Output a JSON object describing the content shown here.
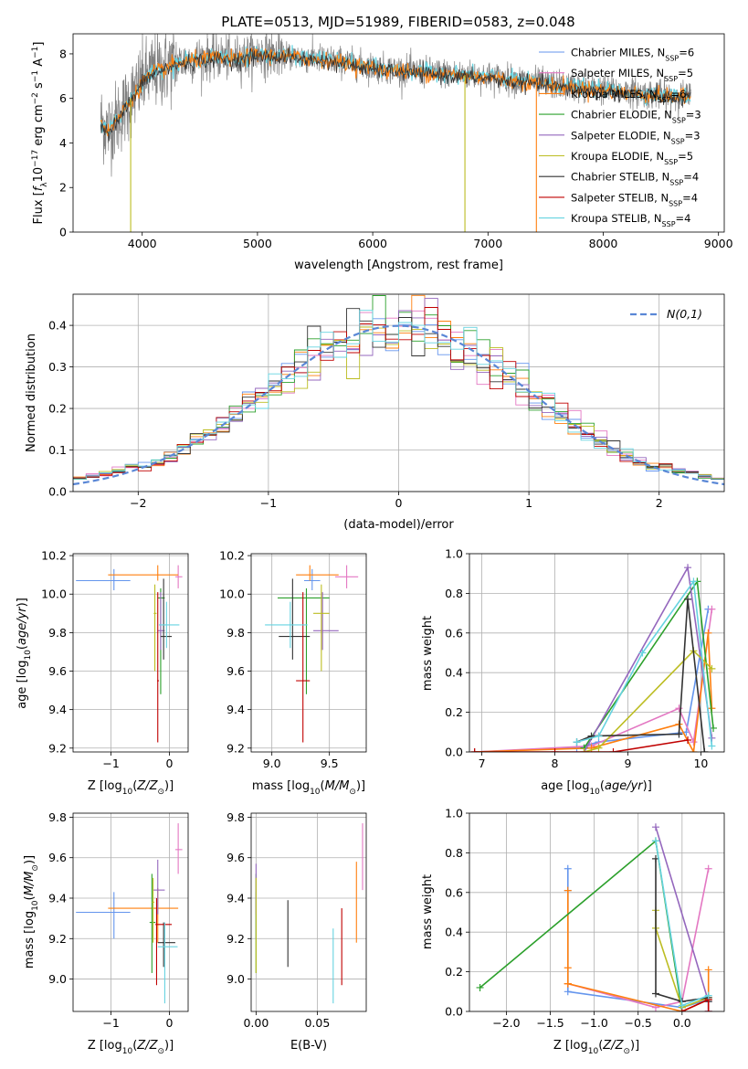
{
  "figure": {
    "title": "PLATE=0513, MJD=51989, FIBERID=0583, z=0.048"
  },
  "colors": {
    "Chabrier MILES": "#6495ed",
    "Salpeter MILES": "#e377c2",
    "Kroupa MILES": "#ff7f0e",
    "Chabrier ELODIE": "#2ca02c",
    "Salpeter ELODIE": "#9467bd",
    "Kroupa ELODIE": "#bcbd22",
    "Chabrier STELIB": "#333333",
    "Salpeter STELIB": "#c00000",
    "Kroupa STELIB": "#66d3e0",
    "data": "#808080",
    "gaussian": "#5a87d6"
  },
  "legend_spectrum": [
    {
      "name": "Chabrier MILES",
      "nssp": "6",
      "key": "Chabrier MILES"
    },
    {
      "name": "Salpeter MILES",
      "nssp": "5",
      "key": "Salpeter MILES"
    },
    {
      "name": "Kroupa MILES",
      "nssp": "6",
      "key": "Kroupa MILES"
    },
    {
      "name": "Chabrier ELODIE",
      "nssp": "3",
      "key": "Chabrier ELODIE"
    },
    {
      "name": "Salpeter ELODIE",
      "nssp": "3",
      "key": "Salpeter ELODIE"
    },
    {
      "name": "Kroupa ELODIE",
      "nssp": "5",
      "key": "Kroupa ELODIE"
    },
    {
      "name": "Chabrier STELIB",
      "nssp": "4",
      "key": "Chabrier STELIB"
    },
    {
      "name": "Salpeter STELIB",
      "nssp": "4",
      "key": "Salpeter STELIB"
    },
    {
      "name": "Kroupa STELIB",
      "nssp": "4",
      "key": "Kroupa STELIB"
    }
  ],
  "chart_data": [
    {
      "id": "spectrum",
      "type": "line",
      "xlabel": "wavelength [Angstrom, rest frame]",
      "ylabel": "Flux [f_λ 10^-17 erg cm^-2 s^-1 A^-1]",
      "xlim": [
        3400,
        9050
      ],
      "ylim": [
        0,
        8.9
      ],
      "xticks": [
        4000,
        5000,
        6000,
        7000,
        8000,
        9000
      ],
      "yticks": [
        0,
        2,
        4,
        6,
        8
      ],
      "continuum_x": [
        3640,
        3700,
        3800,
        3900,
        3950,
        4000,
        4100,
        4200,
        4300,
        4400,
        4500,
        4600,
        4700,
        4800,
        4900,
        5000,
        5200,
        5400,
        5600,
        5800,
        6000,
        6200,
        6400,
        6600,
        6800,
        7000,
        7200,
        7400,
        7600,
        7800,
        8000,
        8200,
        8400,
        8600,
        8760
      ],
      "continuum_y": [
        5.0,
        4.6,
        5.2,
        6.0,
        6.3,
        6.8,
        7.2,
        7.4,
        7.6,
        7.7,
        7.8,
        7.85,
        7.85,
        7.8,
        7.9,
        8.0,
        7.95,
        7.85,
        7.75,
        7.6,
        7.4,
        7.3,
        7.2,
        7.15,
        7.05,
        7.0,
        6.85,
        6.75,
        6.6,
        6.5,
        6.4,
        6.3,
        6.2,
        6.1,
        6.1
      ],
      "drops": [
        {
          "series": "Kroupa MILES",
          "x": 7420,
          "y": 0
        },
        {
          "series": "Kroupa ELODIE",
          "x": 3900,
          "y": 0
        },
        {
          "series": "Kroupa ELODIE",
          "x": 6800,
          "y": 0
        }
      ]
    },
    {
      "id": "residuals",
      "type": "histogram",
      "xlabel": "(data-model)/error",
      "ylabel": "Normed distribution",
      "xlim": [
        -2.5,
        2.5
      ],
      "ylim": [
        0,
        0.475
      ],
      "xticks": [
        -2,
        -1,
        0,
        1,
        2
      ],
      "yticks": [
        0,
        0.1,
        0.2,
        0.3,
        0.4
      ],
      "bin_width": 0.1,
      "legend": "N(0,1)",
      "grid": true
    },
    {
      "id": "age_vs_Z",
      "type": "errorbar",
      "xlabel": "Z [log10(Z/Z⊙)]",
      "ylabel": "age [log10(age/yr)]",
      "xlim": [
        -1.65,
        0.32
      ],
      "ylim": [
        9.18,
        10.21
      ],
      "xticks": [
        -1,
        0
      ],
      "yticks": [
        9.2,
        9.4,
        9.6,
        9.8,
        10.0,
        10.2
      ],
      "points": [
        {
          "series": "Chabrier MILES",
          "x": -0.95,
          "xerr": [
            0.65,
            0.28
          ],
          "y": 10.07,
          "yerr": [
            0.05,
            0.06
          ]
        },
        {
          "series": "Salpeter MILES",
          "x": 0.15,
          "xerr": [
            0.05,
            0.07
          ],
          "y": 10.09,
          "yerr": [
            0.06,
            0.06
          ]
        },
        {
          "series": "Kroupa MILES",
          "x": -0.2,
          "xerr": [
            0.85,
            0.35
          ],
          "y": 10.1,
          "yerr": [
            0.03,
            0.05
          ]
        },
        {
          "series": "Chabrier ELODIE",
          "x": -0.15,
          "xerr": [
            0.05,
            0.07
          ],
          "y": 9.98,
          "yerr": [
            0.5,
            0.05
          ]
        },
        {
          "series": "Salpeter ELODIE",
          "x": -0.15,
          "xerr": [
            0.05,
            0.07
          ],
          "y": 9.81,
          "yerr": [
            0.1,
            0.2
          ]
        },
        {
          "series": "Kroupa ELODIE",
          "x": -0.25,
          "xerr": [
            0.02,
            0.03
          ],
          "y": 9.9,
          "yerr": [
            0.3,
            0.15
          ]
        },
        {
          "series": "Chabrier STELIB",
          "x": -0.1,
          "xerr": [
            0.05,
            0.14
          ],
          "y": 9.78,
          "yerr": [
            0.12,
            0.3
          ]
        },
        {
          "series": "Salpeter STELIB",
          "x": -0.2,
          "xerr": [
            0.01,
            0.02
          ],
          "y": 9.55,
          "yerr": [
            0.32,
            0.46
          ]
        },
        {
          "series": "Kroupa STELIB",
          "x": -0.05,
          "xerr": [
            0.13,
            0.22
          ],
          "y": 9.84,
          "yerr": [
            0.12,
            0.12
          ]
        }
      ]
    },
    {
      "id": "age_vs_mass",
      "type": "errorbar",
      "xlabel": "mass [log10(M/M⊙)]",
      "ylabel": "",
      "xlim": [
        8.82,
        9.82
      ],
      "ylim": [
        9.18,
        10.21
      ],
      "xticks": [
        9.0,
        9.5
      ],
      "yticks": [
        9.2,
        9.4,
        9.6,
        9.8,
        10.0,
        10.2
      ],
      "points": [
        {
          "series": "Chabrier MILES",
          "x": 9.35,
          "xerr": [
            0.07,
            0.07
          ],
          "y": 10.07,
          "yerr": [
            0.05,
            0.06
          ]
        },
        {
          "series": "Salpeter MILES",
          "x": 9.65,
          "xerr": [
            0.1,
            0.1
          ],
          "y": 10.09,
          "yerr": [
            0.06,
            0.06
          ]
        },
        {
          "series": "Kroupa MILES",
          "x": 9.33,
          "xerr": [
            0.12,
            0.25
          ],
          "y": 10.1,
          "yerr": [
            0.03,
            0.05
          ]
        },
        {
          "series": "Chabrier ELODIE",
          "x": 9.3,
          "xerr": [
            0.25,
            0.2
          ],
          "y": 9.98,
          "yerr": [
            0.5,
            0.05
          ]
        },
        {
          "series": "Salpeter ELODIE",
          "x": 9.44,
          "xerr": [
            0.08,
            0.14
          ],
          "y": 9.81,
          "yerr": [
            0.1,
            0.2
          ]
        },
        {
          "series": "Kroupa ELODIE",
          "x": 9.43,
          "xerr": [
            0.07,
            0.07
          ],
          "y": 9.9,
          "yerr": [
            0.3,
            0.15
          ]
        },
        {
          "series": "Chabrier STELIB",
          "x": 9.18,
          "xerr": [
            0.12,
            0.15
          ],
          "y": 9.78,
          "yerr": [
            0.12,
            0.3
          ]
        },
        {
          "series": "Salpeter STELIB",
          "x": 9.27,
          "xerr": [
            0.06,
            0.06
          ],
          "y": 9.55,
          "yerr": [
            0.32,
            0.46
          ]
        },
        {
          "series": "Kroupa STELIB",
          "x": 9.16,
          "xerr": [
            0.22,
            0.15
          ],
          "y": 9.84,
          "yerr": [
            0.12,
            0.12
          ]
        }
      ]
    },
    {
      "id": "weight_vs_age",
      "type": "line",
      "xlabel": "age [log10(age/yr)]",
      "ylabel": "mass weight",
      "xlim": [
        6.83,
        10.32
      ],
      "ylim": [
        0,
        1.0
      ],
      "xticks": [
        7,
        8,
        9,
        10
      ],
      "yticks": [
        0.0,
        0.2,
        0.4,
        0.6,
        0.8,
        1.0
      ],
      "series": [
        {
          "name": "Chabrier MILES",
          "x": [
            6.9,
            8.3,
            8.6,
            9.8,
            10.1
          ],
          "y": [
            0.0,
            0.02,
            0.05,
            0.1,
            0.72
          ]
        },
        {
          "name": "Salpeter MILES",
          "x": [
            6.9,
            8.5,
            9.7,
            9.9,
            10.15
          ],
          "y": [
            0.0,
            0.03,
            0.22,
            0.05,
            0.72
          ]
        },
        {
          "name": "Kroupa MILES",
          "x": [
            6.9,
            8.5,
            9.7,
            9.9,
            10.1,
            10.15
          ],
          "y": [
            0.0,
            0.02,
            0.14,
            0.0,
            0.6,
            0.22
          ]
        },
        {
          "name": "Chabrier ELODIE",
          "x": [
            8.4,
            9.95,
            10.17
          ],
          "y": [
            0.02,
            0.86,
            0.12
          ]
        },
        {
          "name": "Salpeter ELODIE",
          "x": [
            8.4,
            9.82,
            10.15
          ],
          "y": [
            0.0,
            0.93,
            0.07
          ]
        },
        {
          "name": "Kroupa ELODIE",
          "x": [
            8.4,
            8.6,
            9.9,
            10.15
          ],
          "y": [
            0.0,
            0.02,
            0.51,
            0.42
          ]
        },
        {
          "name": "Chabrier STELIB",
          "x": [
            8.3,
            8.5,
            9.7,
            9.82,
            10.05
          ],
          "y": [
            0.05,
            0.08,
            0.09,
            0.77,
            0.0
          ]
        },
        {
          "name": "Salpeter STELIB",
          "x": [
            6.9,
            8.0,
            8.8,
            9.82
          ],
          "y": [
            0.0,
            0.0,
            0.0,
            0.06
          ]
        },
        {
          "name": "Kroupa STELIB",
          "x": [
            8.3,
            8.6,
            9.2,
            9.9,
            10.15
          ],
          "y": [
            0.05,
            0.08,
            0.5,
            0.86,
            0.03
          ]
        }
      ]
    },
    {
      "id": "mass_vs_Z",
      "type": "errorbar",
      "xlabel": "Z [log10(Z/Z⊙)]",
      "ylabel": "mass [log10(M/M⊙)]",
      "xlim": [
        -1.65,
        0.32
      ],
      "ylim": [
        8.84,
        9.82
      ],
      "xticks": [
        -1,
        0
      ],
      "yticks": [
        9.0,
        9.2,
        9.4,
        9.6,
        9.8
      ],
      "points": [
        {
          "series": "Chabrier MILES",
          "x": -0.95,
          "xerr": [
            0.65,
            0.28
          ],
          "y": 9.33,
          "yerr": [
            0.13,
            0.1
          ]
        },
        {
          "series": "Salpeter MILES",
          "x": 0.15,
          "xerr": [
            0.05,
            0.07
          ],
          "y": 9.64,
          "yerr": [
            0.12,
            0.13
          ]
        },
        {
          "series": "Kroupa MILES",
          "x": -0.2,
          "xerr": [
            0.85,
            0.35
          ],
          "y": 9.35,
          "yerr": [
            0.17,
            0.1
          ]
        },
        {
          "series": "Chabrier ELODIE",
          "x": -0.3,
          "xerr": [
            0.04,
            0.06
          ],
          "y": 9.28,
          "yerr": [
            0.25,
            0.24
          ]
        },
        {
          "series": "Salpeter ELODIE",
          "x": -0.2,
          "xerr": [
            0.08,
            0.12
          ],
          "y": 9.44,
          "yerr": [
            0.12,
            0.15
          ]
        },
        {
          "series": "Kroupa ELODIE",
          "x": -0.28,
          "xerr": [
            0.02,
            0.02
          ],
          "y": 9.38,
          "yerr": [
            0.2,
            0.12
          ]
        },
        {
          "series": "Chabrier STELIB",
          "x": -0.1,
          "xerr": [
            0.1,
            0.2
          ],
          "y": 9.18,
          "yerr": [
            0.12,
            0.1
          ]
        },
        {
          "series": "Salpeter STELIB",
          "x": -0.22,
          "xerr": [
            0.02,
            0.26
          ],
          "y": 9.27,
          "yerr": [
            0.3,
            0.13
          ]
        },
        {
          "series": "Kroupa STELIB",
          "x": -0.08,
          "xerr": [
            0.12,
            0.22
          ],
          "y": 9.16,
          "yerr": [
            0.28,
            0.12
          ]
        }
      ]
    },
    {
      "id": "mass_vs_ebv",
      "type": "errorbar",
      "xlabel": "E(B-V)",
      "ylabel": "",
      "xlim": [
        -0.004,
        0.09
      ],
      "ylim": [
        8.84,
        9.82
      ],
      "xticks": [
        0.0,
        0.05
      ],
      "yticks": [
        9.0,
        9.2,
        9.4,
        9.6,
        9.8
      ],
      "points": [
        {
          "series": "Chabrier MILES",
          "x": 0.0,
          "y": 9.33,
          "yerr": [
            0.13,
            0.1
          ]
        },
        {
          "series": "Salpeter MILES",
          "x": 0.087,
          "y": 9.6,
          "yerr": [
            0.16,
            0.17
          ]
        },
        {
          "series": "Kroupa MILES",
          "x": 0.082,
          "y": 9.38,
          "yerr": [
            0.2,
            0.2
          ]
        },
        {
          "series": "Chabrier ELODIE",
          "x": 0.0,
          "y": 9.28,
          "yerr": [
            0.25,
            0.24
          ]
        },
        {
          "series": "Salpeter ELODIE",
          "x": 0.0,
          "y": 9.44,
          "yerr": [
            0.12,
            0.13
          ]
        },
        {
          "series": "Kroupa ELODIE",
          "x": 0.0,
          "y": 9.3,
          "yerr": [
            0.27,
            0.2
          ]
        },
        {
          "series": "Chabrier STELIB",
          "x": 0.026,
          "y": 9.22,
          "yerr": [
            0.16,
            0.17
          ]
        },
        {
          "series": "Salpeter STELIB",
          "x": 0.07,
          "y": 9.16,
          "yerr": [
            0.19,
            0.19
          ]
        },
        {
          "series": "Kroupa STELIB",
          "x": 0.063,
          "y": 9.05,
          "yerr": [
            0.17,
            0.2
          ]
        }
      ]
    },
    {
      "id": "weight_vs_Z",
      "type": "line",
      "xlabel": "Z [log10(Z/Z⊙)]",
      "ylabel": "mass weight",
      "xlim": [
        -2.42,
        0.48
      ],
      "ylim": [
        0,
        1.0
      ],
      "xticks": [
        -2.0,
        -1.5,
        -1.0,
        -0.5,
        0.0
      ],
      "yticks": [
        0.0,
        0.2,
        0.4,
        0.6,
        0.8,
        1.0
      ],
      "series": [
        {
          "name": "Chabrier MILES",
          "x": [
            -1.3,
            -1.3,
            -1.3,
            0.0,
            0.3,
            0.3
          ],
          "y": [
            0.72,
            0.61,
            0.1,
            0.02,
            0.06,
            0.0
          ]
        },
        {
          "name": "Salpeter MILES",
          "x": [
            -1.3,
            -0.3,
            0.0,
            0.3
          ],
          "y": [
            0.14,
            0.02,
            0.05,
            0.72
          ]
        },
        {
          "name": "Kroupa MILES",
          "x": [
            -1.3,
            -1.3,
            -1.3,
            -1.3,
            0.0,
            0.3,
            0.3
          ],
          "y": [
            0.61,
            0.22,
            0.14,
            0.14,
            0.0,
            0.06,
            0.21
          ]
        },
        {
          "name": "Chabrier ELODIE",
          "x": [
            -2.3,
            -0.3,
            0.0
          ],
          "y": [
            0.12,
            0.86,
            0.0
          ]
        },
        {
          "name": "Salpeter ELODIE",
          "x": [
            -0.3,
            0.3,
            0.3
          ],
          "y": [
            0.93,
            0.05,
            0.0
          ]
        },
        {
          "name": "Kroupa ELODIE",
          "x": [
            -0.3,
            -0.3,
            0.0,
            0.3
          ],
          "y": [
            0.51,
            0.42,
            0.02,
            0.07
          ]
        },
        {
          "name": "Chabrier STELIB",
          "x": [
            -0.3,
            -0.3,
            0.0,
            0.3,
            0.3
          ],
          "y": [
            0.77,
            0.09,
            0.05,
            0.07,
            0.05
          ]
        },
        {
          "name": "Salpeter STELIB",
          "x": [
            0.0,
            0.3,
            0.3
          ],
          "y": [
            0.0,
            0.06,
            0.0
          ]
        },
        {
          "name": "Kroupa STELIB",
          "x": [
            -0.3,
            0.0,
            0.3
          ],
          "y": [
            0.86,
            0.03,
            0.08
          ]
        }
      ]
    }
  ]
}
